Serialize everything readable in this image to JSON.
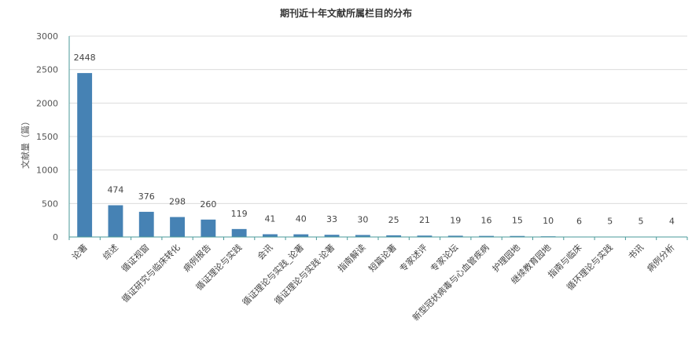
{
  "chart_data": {
    "type": "bar",
    "title": "期刊近十年文献所属栏目的分布",
    "xlabel": "",
    "ylabel": "文献量（篇）",
    "ylim": [
      0,
      3000
    ],
    "yticks": [
      0,
      500,
      1000,
      1500,
      2000,
      2500,
      3000
    ],
    "grid": true,
    "legend": "none",
    "bar_color": "#4682b4",
    "categories": [
      "论著",
      "综述",
      "循证视窗",
      "循证研究与临床转化",
      "病例报告",
      "循证理论与实践",
      "会讯",
      "循证理论与实践_论著",
      "循证理论与实践·论著",
      "指南解读",
      "短篇论著",
      "专家述评",
      "专家论坛",
      "新型冠状病毒与心血管疾病",
      "护理园地",
      "继续教育园地",
      "指南与临床",
      "循环理论与实践",
      "书讯",
      "病例分析"
    ],
    "values": [
      2448,
      474,
      376,
      298,
      260,
      119,
      41,
      40,
      33,
      30,
      25,
      21,
      19,
      16,
      15,
      10,
      6,
      5,
      5,
      4
    ]
  }
}
